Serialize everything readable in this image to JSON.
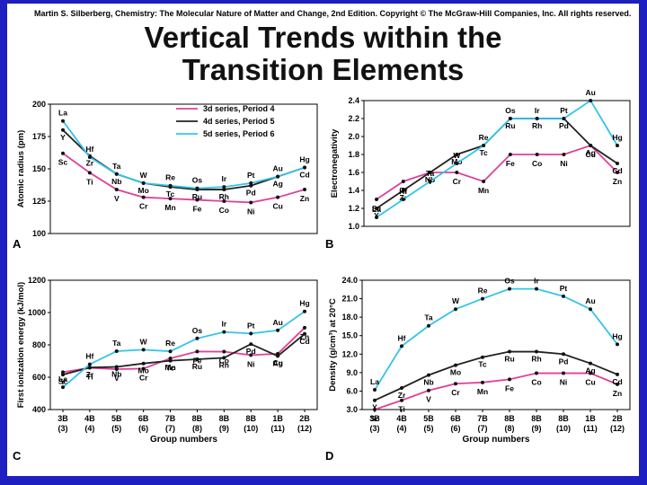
{
  "header": {
    "credit": "Martin S. Silberberg, Chemistry: The Molecular Nature of Matter and Change, 2nd Edition. Copyright © The McGraw-Hill Companies, Inc. All rights reserved.",
    "title_line1": "Vertical Trends within the",
    "title_line2": "Transition Elements"
  },
  "colors": {
    "period4": "#e0409a",
    "period5": "#222222",
    "period6": "#33c4e8",
    "background": "#1d1fc0"
  },
  "chart_data": [
    {
      "id": "A",
      "type": "line",
      "panel_label": "A",
      "ylabel": "Atomic radius (pm)",
      "ylim": [
        100,
        200
      ],
      "yticks": [
        "100",
        "125",
        "150",
        "175",
        "200"
      ],
      "legend": [
        {
          "text": "3d series, Period 4",
          "series": "period4"
        },
        {
          "text": "4d series, Period 5",
          "series": "period5"
        },
        {
          "text": "5d series, Period 6",
          "series": "period6"
        }
      ],
      "series": [
        {
          "name": "period4",
          "labels": [
            "Sc",
            "Ti",
            "V",
            "Cr",
            "Mn",
            "Fe",
            "Co",
            "Ni",
            "Cu",
            "Zn"
          ],
          "values": [
            162,
            147,
            134,
            128,
            127,
            126,
            125,
            124,
            128,
            134
          ]
        },
        {
          "name": "period5",
          "labels": [
            "Y",
            "Zr",
            "Nb",
            "Mo",
            "Tc",
            "Ru",
            "Rh",
            "Pd",
            "Ag",
            "Cd"
          ],
          "values": [
            180,
            160,
            146,
            139,
            136,
            134,
            134,
            137,
            144,
            151
          ]
        },
        {
          "name": "period6",
          "labels": [
            "La",
            "Hf",
            "Ta",
            "W",
            "Re",
            "Os",
            "Ir",
            "Pt",
            "Au",
            "Hg"
          ],
          "values": [
            187,
            159,
            146,
            139,
            137,
            135,
            136,
            139,
            144,
            151
          ]
        }
      ]
    },
    {
      "id": "B",
      "type": "line",
      "panel_label": "B",
      "ylabel": "Electronegativity",
      "ylim": [
        1.0,
        2.4
      ],
      "yticks": [
        "1.0",
        "1.2",
        "1.4",
        "1.6",
        "1.8",
        "2.0",
        "2.2",
        "2.4"
      ],
      "series": [
        {
          "name": "period4",
          "labels": [
            "Sc",
            "Ti",
            "V",
            "Cr",
            "Mn",
            "Fe",
            "Co",
            "Ni",
            "Cu",
            "Zn"
          ],
          "values": [
            1.3,
            1.5,
            1.6,
            1.6,
            1.5,
            1.8,
            1.8,
            1.8,
            1.9,
            1.6
          ]
        },
        {
          "name": "period5",
          "labels": [
            "Y",
            "Zr",
            "Nb",
            "Mo",
            "Tc",
            "Ru",
            "Rh",
            "Pd",
            "Ag",
            "Cd"
          ],
          "values": [
            1.2,
            1.4,
            1.6,
            1.8,
            1.9,
            2.2,
            2.2,
            2.2,
            1.9,
            1.7
          ]
        },
        {
          "name": "period6",
          "labels": [
            "La",
            "Hf",
            "Ta",
            "W",
            "Re",
            "Os",
            "Ir",
            "Pt",
            "Au",
            "Hg"
          ],
          "values": [
            1.1,
            1.3,
            1.5,
            1.7,
            1.9,
            2.2,
            2.2,
            2.2,
            2.4,
            1.9
          ]
        }
      ]
    },
    {
      "id": "C",
      "type": "line",
      "panel_label": "C",
      "ylabel": "First ionization energy (kJ/mol)",
      "ylim": [
        400,
        1200
      ],
      "yticks": [
        "400",
        "600",
        "800",
        "1000",
        "1200"
      ],
      "xlabel": "Group numbers",
      "categories": [
        "3B",
        "4B",
        "5B",
        "6B",
        "7B",
        "8B",
        "8B",
        "8B",
        "1B",
        "2B"
      ],
      "categories_sub": [
        "(3)",
        "(4)",
        "(5)",
        "(6)",
        "(7)",
        "(8)",
        "(9)",
        "(10)",
        "(11)",
        "(12)"
      ],
      "series": [
        {
          "name": "period4",
          "labels": [
            "Sc",
            "Ti",
            "V",
            "Cr",
            "Mn",
            "Fe",
            "Co",
            "Ni",
            "Cu",
            "Zn"
          ],
          "values": [
            631,
            658,
            650,
            653,
            717,
            759,
            758,
            737,
            745,
            906
          ]
        },
        {
          "name": "period5",
          "labels": [
            "Y",
            "Zr",
            "Nb",
            "Mo",
            "Tc",
            "Ru",
            "Rh",
            "Pd",
            "Ag",
            "Cd"
          ],
          "values": [
            616,
            660,
            664,
            685,
            702,
            711,
            720,
            805,
            731,
            868
          ]
        },
        {
          "name": "period6",
          "labels": [
            "La",
            "Hf",
            "Ta",
            "W",
            "Re",
            "Os",
            "Ir",
            "Pt",
            "Au",
            "Hg"
          ],
          "values": [
            538,
            680,
            761,
            770,
            760,
            840,
            880,
            870,
            890,
            1007
          ]
        }
      ]
    },
    {
      "id": "D",
      "type": "line",
      "panel_label": "D",
      "ylabel": "Density (g/cm³) at 20°C",
      "ylim": [
        3.0,
        24.0
      ],
      "yticks": [
        "3.0",
        "6.0",
        "9.0",
        "12.0",
        "15.0",
        "18.0",
        "21.0",
        "24.0"
      ],
      "xlabel": "Group numbers",
      "categories": [
        "3B",
        "4B",
        "5B",
        "6B",
        "7B",
        "8B",
        "8B",
        "8B",
        "1B",
        "2B"
      ],
      "categories_sub": [
        "(3)",
        "(4)",
        "(5)",
        "(6)",
        "(7)",
        "(8)",
        "(9)",
        "(10)",
        "(11)",
        "(12)"
      ],
      "series": [
        {
          "name": "period4",
          "labels": [
            "Sc",
            "Ti",
            "V",
            "Cr",
            "Mn",
            "Fe",
            "Co",
            "Ni",
            "Cu",
            "Zn"
          ],
          "values": [
            3.0,
            4.5,
            6.1,
            7.2,
            7.4,
            7.9,
            8.9,
            8.9,
            8.9,
            7.1
          ]
        },
        {
          "name": "period5",
          "labels": [
            "Y",
            "Zr",
            "Nb",
            "Mo",
            "Tc",
            "Ru",
            "Rh",
            "Pd",
            "Ag",
            "Cd"
          ],
          "values": [
            4.5,
            6.5,
            8.6,
            10.2,
            11.5,
            12.4,
            12.4,
            12.0,
            10.5,
            8.7
          ]
        },
        {
          "name": "period6",
          "labels": [
            "La",
            "Hf",
            "Ta",
            "W",
            "Re",
            "Os",
            "Ir",
            "Pt",
            "Au",
            "Hg"
          ],
          "values": [
            6.2,
            13.3,
            16.6,
            19.3,
            21.0,
            22.6,
            22.6,
            21.4,
            19.3,
            13.6
          ]
        }
      ]
    }
  ]
}
